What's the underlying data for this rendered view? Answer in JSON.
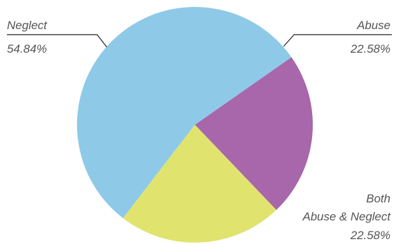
{
  "chart_data": {
    "type": "pie",
    "title": "",
    "slices": [
      {
        "label": "Neglect",
        "value": 54.84,
        "value_label": "54.84%",
        "color": "#8ecae8"
      },
      {
        "label": "Abuse",
        "value": 22.58,
        "value_label": "22.58%",
        "color": "#a866ab"
      },
      {
        "label_lines": [
          "Both",
          "Abuse & Neglect"
        ],
        "value": 22.58,
        "value_label": "22.58%",
        "color": "#e0e46e"
      }
    ],
    "start_angle_deg": 55,
    "direction": "clockwise"
  }
}
